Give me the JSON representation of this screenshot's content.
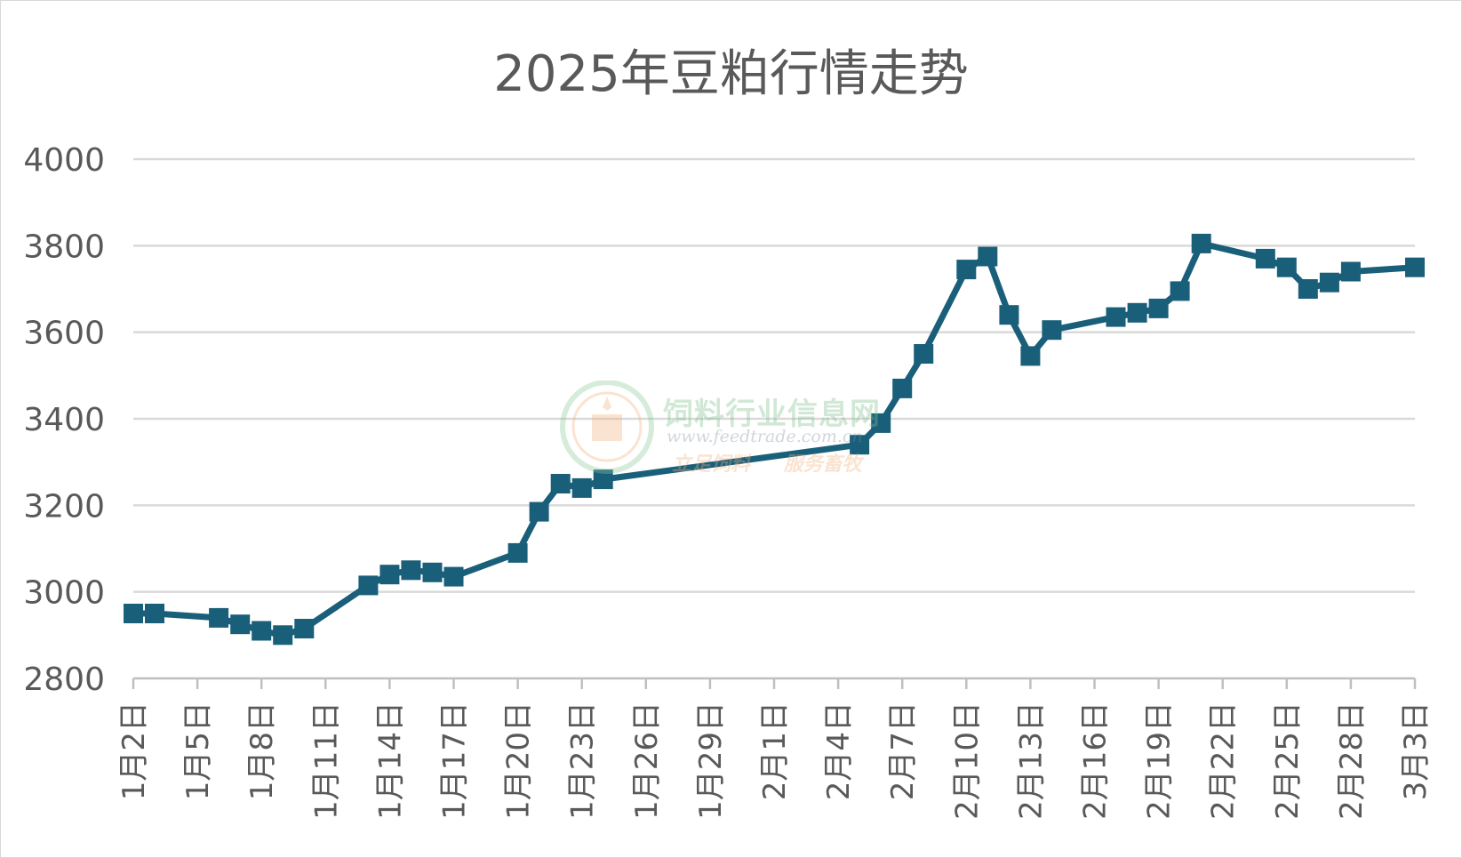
{
  "chart_data": {
    "type": "line",
    "title": "2025年豆粕行情走势",
    "xlabel": "",
    "ylabel": "",
    "ylim": [
      2800,
      4000
    ],
    "yticks": [
      2800,
      3000,
      3200,
      3400,
      3600,
      3800,
      4000
    ],
    "grid": true,
    "legend": "none",
    "line_color": "#1a5f7a",
    "x_ticks": [
      "1月2日",
      "1月5日",
      "1月8日",
      "1月11日",
      "1月14日",
      "1月17日",
      "1月20日",
      "1月23日",
      "1月26日",
      "1月29日",
      "2月1日",
      "2月4日",
      "2月7日",
      "2月10日",
      "2月13日",
      "2月16日",
      "2月19日",
      "2月22日",
      "2月25日",
      "2月28日",
      "3月3日"
    ],
    "series": [
      {
        "points": [
          {
            "x": "2025-01-02",
            "y": 2950
          },
          {
            "x": "2025-01-03",
            "y": 2950
          },
          {
            "x": "2025-01-06",
            "y": 2940
          },
          {
            "x": "2025-01-07",
            "y": 2925
          },
          {
            "x": "2025-01-08",
            "y": 2910
          },
          {
            "x": "2025-01-09",
            "y": 2900
          },
          {
            "x": "2025-01-10",
            "y": 2915
          },
          {
            "x": "2025-01-13",
            "y": 3015
          },
          {
            "x": "2025-01-14",
            "y": 3040
          },
          {
            "x": "2025-01-15",
            "y": 3050
          },
          {
            "x": "2025-01-16",
            "y": 3045
          },
          {
            "x": "2025-01-17",
            "y": 3035
          },
          {
            "x": "2025-01-20",
            "y": 3090
          },
          {
            "x": "2025-01-21",
            "y": 3185
          },
          {
            "x": "2025-01-22",
            "y": 3250
          },
          {
            "x": "2025-01-23",
            "y": 3240
          },
          {
            "x": "2025-01-24",
            "y": 3260
          },
          {
            "x": "2025-02-05",
            "y": 3340
          },
          {
            "x": "2025-02-06",
            "y": 3390
          },
          {
            "x": "2025-02-07",
            "y": 3470
          },
          {
            "x": "2025-02-08",
            "y": 3550
          },
          {
            "x": "2025-02-10",
            "y": 3745
          },
          {
            "x": "2025-02-11",
            "y": 3775
          },
          {
            "x": "2025-02-12",
            "y": 3640
          },
          {
            "x": "2025-02-13",
            "y": 3545
          },
          {
            "x": "2025-02-14",
            "y": 3605
          },
          {
            "x": "2025-02-17",
            "y": 3635
          },
          {
            "x": "2025-02-18",
            "y": 3645
          },
          {
            "x": "2025-02-19",
            "y": 3655
          },
          {
            "x": "2025-02-20",
            "y": 3695
          },
          {
            "x": "2025-02-21",
            "y": 3805
          },
          {
            "x": "2025-02-24",
            "y": 3770
          },
          {
            "x": "2025-02-25",
            "y": 3750
          },
          {
            "x": "2025-02-26",
            "y": 3700
          },
          {
            "x": "2025-02-27",
            "y": 3715
          },
          {
            "x": "2025-02-28",
            "y": 3740
          },
          {
            "x": "2025-03-03",
            "y": 3750
          }
        ]
      }
    ]
  },
  "watermark": {
    "name": "饲料行业信息网",
    "url": "www.feedtrade.com.cn",
    "slogan": "立足饲料 服务畜牧",
    "logo_colors": [
      "#8cc99a",
      "#f2b27a"
    ]
  }
}
